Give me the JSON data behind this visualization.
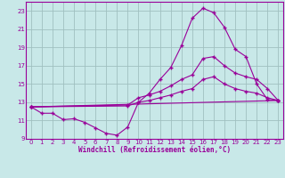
{
  "xlabel": "Windchill (Refroidissement éolien,°C)",
  "background_color": "#c8e8e8",
  "grid_color": "#a0c0c0",
  "line_color": "#990099",
  "xlim": [
    -0.5,
    23.5
  ],
  "ylim": [
    9,
    24
  ],
  "xticks": [
    0,
    1,
    2,
    3,
    4,
    5,
    6,
    7,
    8,
    9,
    10,
    11,
    12,
    13,
    14,
    15,
    16,
    17,
    18,
    19,
    20,
    21,
    22,
    23
  ],
  "yticks": [
    9,
    11,
    13,
    15,
    17,
    19,
    21,
    23
  ],
  "series1_x": [
    0,
    1,
    2,
    3,
    4,
    5,
    6,
    7,
    8,
    9,
    10,
    11,
    12,
    13,
    14,
    15,
    16,
    17,
    18,
    19,
    20,
    21,
    22,
    23
  ],
  "series1_y": [
    12.5,
    11.8,
    11.8,
    11.1,
    11.2,
    10.8,
    10.2,
    9.6,
    9.4,
    10.3,
    13.0,
    14.0,
    15.5,
    16.8,
    19.2,
    22.2,
    23.3,
    22.8,
    21.2,
    18.8,
    18.0,
    15.0,
    13.3,
    13.2
  ],
  "series2_x": [
    0,
    9,
    10,
    11,
    12,
    13,
    14,
    15,
    16,
    17,
    18,
    19,
    20,
    21,
    22,
    23
  ],
  "series2_y": [
    12.5,
    12.7,
    13.5,
    13.8,
    14.2,
    14.8,
    15.5,
    16.0,
    17.8,
    18.0,
    17.0,
    16.2,
    15.8,
    15.5,
    14.5,
    13.2
  ],
  "series3_x": [
    0,
    9,
    10,
    11,
    12,
    13,
    14,
    15,
    16,
    17,
    18,
    19,
    20,
    21,
    22,
    23
  ],
  "series3_y": [
    12.5,
    12.6,
    13.0,
    13.2,
    13.5,
    13.8,
    14.2,
    14.5,
    15.5,
    15.8,
    15.0,
    14.5,
    14.2,
    14.0,
    13.5,
    13.2
  ],
  "series4_x": [
    0,
    23
  ],
  "series4_y": [
    12.5,
    13.2
  ]
}
